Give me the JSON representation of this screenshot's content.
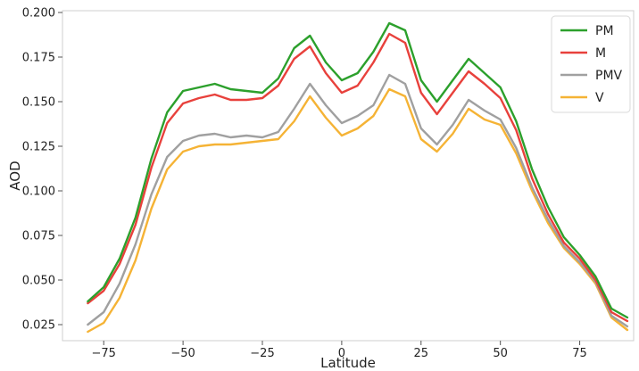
{
  "chart_data": {
    "type": "line",
    "xlabel": "Latitude",
    "ylabel": "AOD",
    "xlim": [
      -88,
      92
    ],
    "ylim": [
      0.016,
      0.201
    ],
    "xticks": [
      -75,
      -50,
      -25,
      0,
      25,
      50,
      75
    ],
    "yticks": [
      0.025,
      0.05,
      0.075,
      0.1,
      0.125,
      0.15,
      0.175,
      0.2
    ],
    "xtick_labels": [
      "−75",
      "−50",
      "−25",
      "0",
      "25",
      "50",
      "75"
    ],
    "ytick_labels": [
      "0.025",
      "0.050",
      "0.075",
      "0.100",
      "0.125",
      "0.150",
      "0.175",
      "0.200"
    ],
    "grid": false,
    "legend_position": "top-right",
    "x": [
      -80,
      -75,
      -70,
      -65,
      -60,
      -55,
      -50,
      -45,
      -40,
      -35,
      -30,
      -25,
      -20,
      -15,
      -10,
      -5,
      0,
      5,
      10,
      15,
      20,
      25,
      30,
      35,
      40,
      45,
      50,
      55,
      60,
      65,
      70,
      75,
      80,
      85,
      90
    ],
    "series": [
      {
        "name": "PM",
        "color": "#2ca02c",
        "values": [
          0.038,
          0.046,
          0.062,
          0.085,
          0.118,
          0.144,
          0.156,
          0.158,
          0.16,
          0.157,
          0.156,
          0.155,
          0.163,
          0.18,
          0.187,
          0.172,
          0.162,
          0.166,
          0.178,
          0.194,
          0.19,
          0.162,
          0.15,
          0.162,
          0.174,
          0.166,
          0.158,
          0.139,
          0.112,
          0.091,
          0.074,
          0.064,
          0.052,
          0.034,
          0.029
        ]
      },
      {
        "name": "M",
        "color": "#e8413c",
        "values": [
          0.037,
          0.044,
          0.059,
          0.081,
          0.113,
          0.138,
          0.149,
          0.152,
          0.154,
          0.151,
          0.151,
          0.152,
          0.159,
          0.174,
          0.181,
          0.166,
          0.155,
          0.159,
          0.172,
          0.188,
          0.183,
          0.155,
          0.143,
          0.155,
          0.167,
          0.16,
          0.152,
          0.134,
          0.107,
          0.087,
          0.071,
          0.062,
          0.05,
          0.032,
          0.027
        ]
      },
      {
        "name": "PMV",
        "color": "#a0a0a0",
        "values": [
          0.025,
          0.032,
          0.048,
          0.07,
          0.098,
          0.119,
          0.128,
          0.131,
          0.132,
          0.13,
          0.131,
          0.13,
          0.133,
          0.146,
          0.16,
          0.148,
          0.138,
          0.142,
          0.148,
          0.165,
          0.16,
          0.135,
          0.126,
          0.137,
          0.151,
          0.145,
          0.14,
          0.124,
          0.102,
          0.084,
          0.069,
          0.06,
          0.049,
          0.03,
          0.024
        ]
      },
      {
        "name": "V",
        "color": "#f5b335",
        "values": [
          0.021,
          0.026,
          0.04,
          0.061,
          0.09,
          0.112,
          0.122,
          0.125,
          0.126,
          0.126,
          0.127,
          0.128,
          0.129,
          0.139,
          0.153,
          0.141,
          0.131,
          0.135,
          0.142,
          0.157,
          0.153,
          0.129,
          0.122,
          0.132,
          0.146,
          0.14,
          0.137,
          0.121,
          0.1,
          0.082,
          0.068,
          0.059,
          0.048,
          0.029,
          0.022
        ]
      }
    ]
  }
}
